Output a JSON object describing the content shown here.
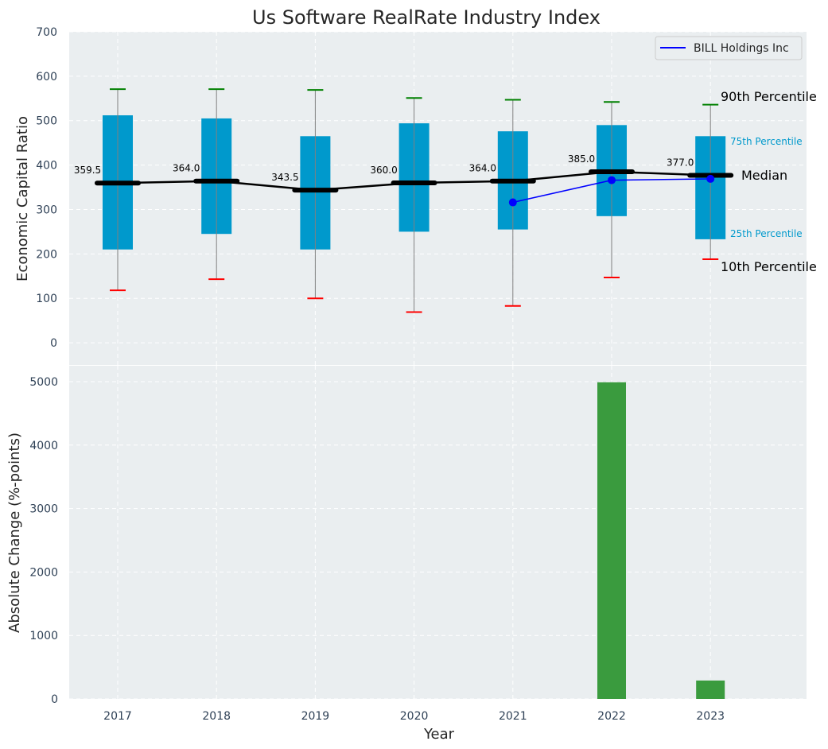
{
  "chart_data": [
    {
      "type": "box",
      "title": "Us Software RealRate Industry Index",
      "xlabel": "",
      "ylabel": "Economic Capital Ratio",
      "ylim": [
        -50,
        700
      ],
      "yticks": [
        0,
        100,
        200,
        300,
        400,
        500,
        600,
        700
      ],
      "categories": [
        "2017",
        "2018",
        "2019",
        "2020",
        "2021",
        "2022",
        "2023"
      ],
      "p10": [
        118,
        143,
        100,
        69,
        83,
        147,
        188
      ],
      "p25": [
        210,
        245,
        210,
        250,
        255,
        285,
        233
      ],
      "median": [
        359.5,
        364.0,
        343.5,
        360.0,
        364.0,
        385.0,
        377.0
      ],
      "median_labels": [
        "359.5",
        "364.0",
        "343.5",
        "360.0",
        "364.0",
        "385.0",
        "377.0"
      ],
      "p75": [
        512,
        505,
        465,
        494,
        476,
        490,
        465
      ],
      "p90": [
        571,
        571,
        569,
        551,
        547,
        542,
        536
      ],
      "company": {
        "name": "BILL Holdings Inc",
        "x": [
          "2021",
          "2022",
          "2023"
        ],
        "values": [
          316,
          366,
          369
        ]
      },
      "annotations": {
        "p90": "90th Percentile",
        "p75": "75th Percentile",
        "median": "Median",
        "p25": "25th Percentile",
        "p10": "10th Percentile"
      },
      "legend_position": "top-right",
      "grid": true,
      "colors": {
        "box": "#0099cc",
        "median": "#000000",
        "company": "#0000ff",
        "p90_cap": "#008000",
        "p10_cap": "#ff0000",
        "whisker": "#808080",
        "background": "#eaeef0"
      }
    },
    {
      "type": "bar",
      "xlabel": "Year",
      "ylabel": "Absolute Change (%-points)",
      "ylim": [
        0,
        5250
      ],
      "yticks": [
        0,
        1000,
        2000,
        3000,
        4000,
        5000
      ],
      "categories": [
        "2017",
        "2018",
        "2019",
        "2020",
        "2021",
        "2022",
        "2023"
      ],
      "values": [
        0,
        0,
        0,
        0,
        0,
        4990,
        290
      ],
      "grid": true,
      "colors": {
        "bar": "#3a9b3e",
        "background": "#eaeef0"
      }
    }
  ]
}
